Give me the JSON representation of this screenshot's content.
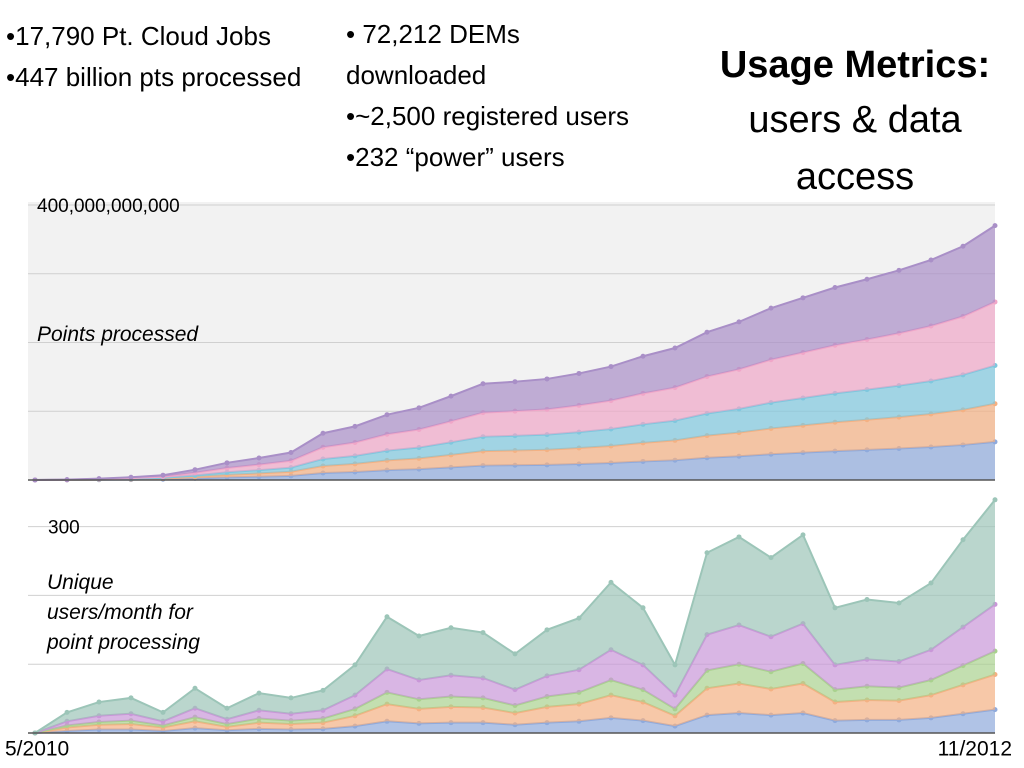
{
  "slide": {
    "bullets_left": [
      "•17,790  Pt. Cloud Jobs",
      "•447 billion pts processed"
    ],
    "bullets_middle": [
      "• 72,212 DEMs downloaded",
      "•~2,500 registered users",
      "•232 “power” users"
    ],
    "title": "Usage Metrics:",
    "subtitle": "users & data access"
  },
  "chart_data": [
    {
      "type": "area",
      "stacked": true,
      "y_label": "Points processed",
      "categories": [
        null,
        null,
        null,
        null,
        null,
        null,
        null,
        null,
        null,
        null,
        null,
        null,
        null,
        null,
        null,
        null,
        null,
        null,
        null,
        null,
        null,
        null,
        null,
        null,
        null,
        null,
        null,
        null,
        null,
        null,
        null
      ],
      "ylim": [
        0,
        400000000000
      ],
      "yticks": [
        {
          "value": 0,
          "label": null
        },
        {
          "value": 100000000000,
          "label": null
        },
        {
          "value": 200000000000,
          "label": null
        },
        {
          "value": 300000000000,
          "label": null
        },
        {
          "value": 400000000000,
          "label": "400,000,000,000"
        }
      ],
      "grid": true,
      "series": [
        {
          "color": "#8faadc",
          "values": [
            0,
            100000000.0,
            300000000.0,
            600000000.0,
            1100000000.0,
            2300000000.0,
            3800000000.0,
            4800000000.0,
            6000000000.0,
            10200000000.0,
            11700000000.0,
            14300000000.0,
            15800000000.0,
            18300000000.0,
            21000000000.0,
            21500000000.0,
            22000000000.0,
            23300000000.0,
            24800000000.0,
            27000000000.0,
            28800000000.0,
            32300000000.0,
            34500000000.0,
            37500000000.0,
            39800000000.0,
            42000000000.0,
            43800000000.0,
            45800000000.0,
            48000000000.0,
            51000000000.0,
            55500000000.0
          ]
        },
        {
          "color": "#f4b183",
          "values": [
            0,
            100000000.0,
            300000000.0,
            600000000.0,
            1000000000.0,
            2200000000.0,
            3700000000.0,
            4800000000.0,
            6000000000.0,
            10200000000.0,
            11700000000.0,
            14200000000.0,
            15700000000.0,
            18300000000.0,
            21000000000.0,
            21400000000.0,
            22000000000.0,
            23200000000.0,
            24700000000.0,
            27000000000.0,
            28800000000.0,
            32200000000.0,
            34500000000.0,
            37500000000.0,
            39700000000.0,
            42000000000.0,
            43800000000.0,
            45700000000.0,
            48000000000.0,
            51000000000.0,
            55500000000.0
          ]
        },
        {
          "color": "#7fc7de",
          "values": [
            0,
            100000000.0,
            300000000.0,
            600000000.0,
            1000000000.0,
            2200000000.0,
            3700000000.0,
            4800000000.0,
            6000000000.0,
            10200000000.0,
            11700000000.0,
            14200000000.0,
            15700000000.0,
            18300000000.0,
            21000000000.0,
            21400000000.0,
            22000000000.0,
            23200000000.0,
            24700000000.0,
            27000000000.0,
            28800000000.0,
            32200000000.0,
            34500000000.0,
            37500000000.0,
            39700000000.0,
            42000000000.0,
            43800000000.0,
            45700000000.0,
            48000000000.0,
            51000000000.0,
            55500000000.0
          ]
        },
        {
          "color": "#f0a6c8",
          "values": [
            0,
            100000000.0,
            500000000.0,
            1000000000.0,
            1800000000.0,
            3800000000.0,
            6300000000.0,
            8000000000.0,
            10000000000.0,
            17000000000.0,
            19500000000.0,
            23800000000.0,
            26300000000.0,
            30500000000.0,
            35000000000.0,
            35800000000.0,
            36800000000.0,
            38800000000.0,
            41300000000.0,
            45000000000.0,
            48000000000.0,
            53800000000.0,
            57500000000.0,
            62500000000.0,
            66300000000.0,
            70000000000.0,
            73000000000.0,
            76300000000.0,
            80000000000.0,
            85000000000.0,
            92500000000.0
          ]
        },
        {
          "color": "#a98fc7",
          "values": [
            0,
            100000000.0,
            600000000.0,
            1200000000.0,
            2100000000.0,
            4500000000.0,
            7500000000.0,
            9600000000.0,
            12000000000.0,
            20400000000.0,
            23400000000.0,
            28500000000.0,
            31500000000.0,
            36600000000.0,
            42000000000.0,
            42900000000.0,
            44200000000.0,
            46500000000.0,
            49500000000.0,
            54000000000.0,
            57600000000.0,
            64500000000.0,
            69000000000.0,
            75000000000.0,
            79500000000.0,
            84000000000.0,
            87600000000.0,
            91500000000.0,
            96000000000.0,
            102000000000.0,
            111000000000.0
          ]
        }
      ]
    },
    {
      "type": "area",
      "stacked": true,
      "y_label": "Unique users/month for point processing",
      "categories": [
        "5/2010",
        null,
        null,
        null,
        null,
        null,
        null,
        null,
        null,
        null,
        null,
        null,
        null,
        null,
        null,
        null,
        null,
        null,
        null,
        null,
        null,
        null,
        null,
        null,
        null,
        null,
        null,
        null,
        null,
        null,
        "11/2012"
      ],
      "ylim": [
        0,
        330
      ],
      "yticks": [
        {
          "value": 0,
          "label": null
        },
        {
          "value": 100,
          "label": null
        },
        {
          "value": 200,
          "label": null
        },
        300
      ],
      "grid": true,
      "series": [
        {
          "color": "#8faadc",
          "values": [
            0,
            3,
            5,
            5,
            3,
            7,
            4,
            6,
            5,
            6,
            10,
            17,
            14,
            15,
            15,
            12,
            15,
            17,
            22,
            18,
            10,
            26,
            29,
            26,
            29,
            18,
            19,
            19,
            22,
            28,
            34
          ]
        },
        {
          "color": "#f4b183",
          "values": [
            0,
            5,
            7,
            8,
            5,
            10,
            5,
            9,
            8,
            9,
            15,
            25,
            21,
            23,
            22,
            17,
            23,
            25,
            33,
            27,
            15,
            39,
            43,
            38,
            43,
            27,
            29,
            28,
            33,
            42,
            51
          ]
        },
        {
          "color": "#a9d18e",
          "values": [
            0,
            3,
            4,
            5,
            3,
            6,
            4,
            6,
            5,
            6,
            10,
            17,
            14,
            15,
            14,
            11,
            15,
            17,
            22,
            18,
            10,
            26,
            28,
            25,
            29,
            18,
            20,
            19,
            22,
            28,
            34
          ]
        },
        {
          "color": "#c997d8",
          "values": [
            0,
            6,
            9,
            10,
            6,
            13,
            7,
            12,
            10,
            12,
            20,
            34,
            28,
            31,
            29,
            23,
            30,
            33,
            44,
            36,
            20,
            52,
            57,
            51,
            58,
            36,
            39,
            38,
            44,
            56,
            68
          ]
        },
        {
          "color": "#9cc5b8",
          "values": [
            0,
            13,
            20,
            23,
            13,
            29,
            16,
            25,
            23,
            29,
            44,
            76,
            64,
            69,
            66,
            52,
            67,
            75,
            98,
            83,
            44,
            119,
            128,
            115,
            129,
            83,
            87,
            85,
            97,
            127,
            152
          ]
        }
      ]
    }
  ]
}
